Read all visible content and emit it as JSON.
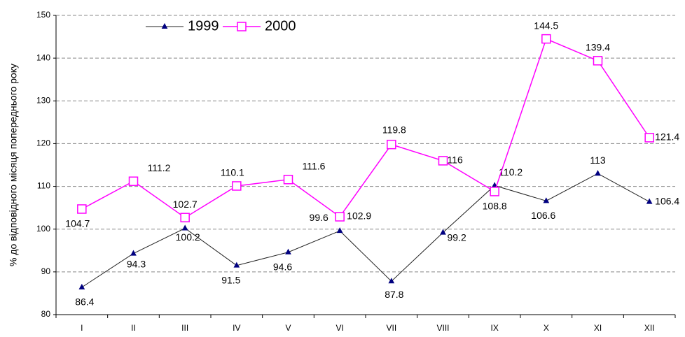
{
  "chart_data": {
    "type": "line",
    "y_label": "% до відповідного місяця попереднього року",
    "categories": [
      "I",
      "II",
      "III",
      "IV",
      "V",
      "VI",
      "VII",
      "VIII",
      "IX",
      "X",
      "XI",
      "XII"
    ],
    "series": [
      {
        "name": "1999",
        "color": "#000080",
        "marker": "triangle",
        "values": [
          86.4,
          94.3,
          100.2,
          91.5,
          94.6,
          99.6,
          87.8,
          99.2,
          110.2,
          106.6,
          113,
          106.4
        ]
      },
      {
        "name": "2000",
        "color": "#ff00ff",
        "marker": "square",
        "values": [
          104.7,
          111.2,
          102.7,
          110.1,
          111.6,
          102.9,
          119.8,
          116,
          108.8,
          144.5,
          139.4,
          121.4
        ]
      }
    ],
    "ylim": [
      80,
      150
    ],
    "yticks": [
      80,
      90,
      100,
      110,
      120,
      130,
      140,
      150
    ],
    "grid": true,
    "legend": "top"
  }
}
